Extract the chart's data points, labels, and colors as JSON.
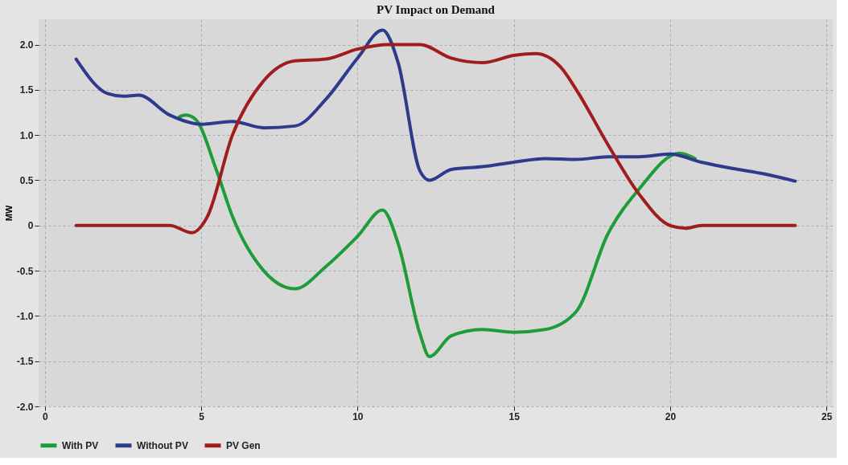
{
  "chart_data": {
    "type": "line",
    "title": "PV Impact on Demand",
    "ylabel": "MW",
    "xlim": [
      -0.2,
      25.2
    ],
    "ylim": [
      -2.0,
      2.28
    ],
    "xticks": [
      0,
      5,
      10,
      15,
      20,
      25
    ],
    "yticks": [
      {
        "value": -2,
        "label": "-2.0"
      },
      -1.5,
      {
        "value": -1,
        "label": "-1.0"
      },
      -0.5,
      0,
      0.5,
      {
        "value": 1,
        "label": "1.0"
      },
      1.5,
      {
        "value": 2,
        "label": "2.0"
      }
    ],
    "grid": true,
    "legend": "bottom left",
    "marker": "none",
    "line_style": "solid",
    "series": [
      {
        "name": "With PV",
        "color": "#1e9c3a",
        "x": [
          4.3,
          4.5,
          4.8,
          5.5,
          6,
          7,
          8,
          9,
          10,
          10.8,
          11.3,
          12,
          12.3,
          13,
          14,
          15,
          16,
          17,
          18,
          19,
          20.3,
          20.8
        ],
        "values": [
          1.2,
          1.22,
          1.18,
          0.6,
          0.1,
          -0.5,
          -0.7,
          -0.45,
          -0.12,
          0.17,
          -0.2,
          -1.2,
          -1.45,
          -1.22,
          -1.15,
          -1.18,
          -1.15,
          -0.95,
          -0.1,
          0.4,
          0.8,
          0.74
        ]
      },
      {
        "name": "Without PV",
        "color": "#2e3a8c",
        "x": [
          1,
          2,
          2.5,
          3,
          4,
          5,
          6,
          7,
          8,
          9,
          10,
          10.8,
          11.3,
          12,
          12.3,
          13,
          14,
          15,
          16,
          17,
          18,
          19,
          20,
          21,
          22,
          23,
          24
        ],
        "values": [
          1.84,
          1.46,
          1.43,
          1.44,
          1.22,
          1.12,
          1.15,
          1.08,
          1.1,
          1.4,
          1.85,
          2.16,
          1.8,
          0.6,
          0.5,
          0.62,
          0.65,
          0.7,
          0.74,
          0.73,
          0.76,
          0.76,
          0.79,
          0.7,
          0.63,
          0.57,
          0.49
        ]
      },
      {
        "name": "PV Gen",
        "color": "#a11d1d",
        "x": [
          1,
          4,
          4.7,
          5.2,
          6,
          7,
          8,
          9,
          10,
          11,
          12,
          13,
          14,
          15,
          15.7,
          16.5,
          17,
          18,
          19,
          20,
          20.5,
          21,
          22,
          23,
          24
        ],
        "values": [
          0,
          0,
          -0.08,
          0.1,
          1.0,
          1.6,
          1.82,
          1.84,
          1.95,
          2.0,
          2.0,
          1.85,
          1.8,
          1.88,
          1.9,
          1.75,
          1.5,
          0.9,
          0.35,
          0,
          -0.03,
          0,
          0,
          0,
          0
        ]
      }
    ]
  }
}
